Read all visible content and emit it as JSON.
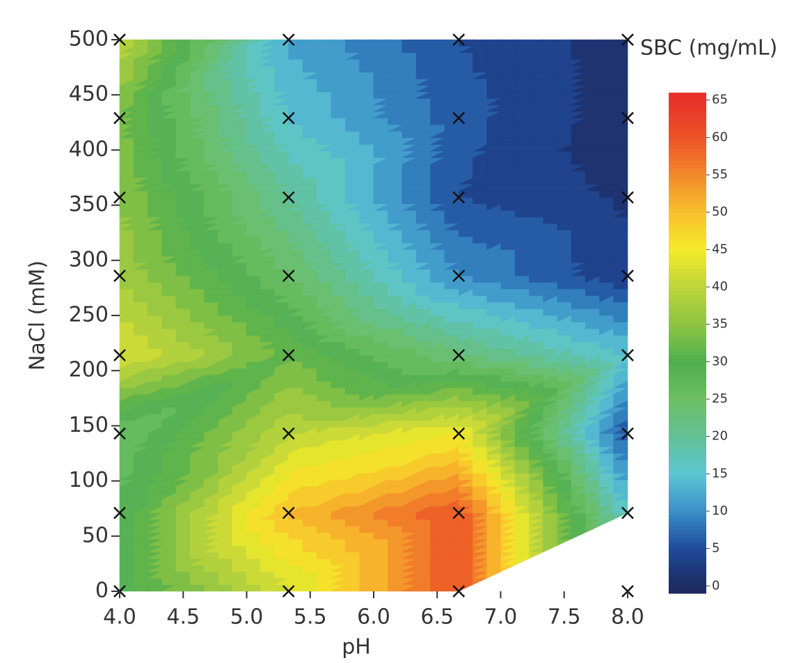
{
  "chart_data": {
    "type": "contour",
    "x_label": "pH",
    "y_label": "NaCl (mM)",
    "x": [
      4.0,
      5.33,
      6.67,
      8.0
    ],
    "y": [
      0,
      71,
      143,
      214,
      286,
      357,
      429,
      500
    ],
    "z": [
      [
        28,
        42,
        60,
        null
      ],
      [
        28,
        50,
        60,
        15
      ],
      [
        25,
        40,
        45,
        5
      ],
      [
        43,
        32,
        23,
        15
      ],
      [
        37,
        25,
        10,
        3
      ],
      [
        35,
        20,
        5,
        2
      ],
      [
        33,
        15,
        6,
        1
      ],
      [
        40,
        12,
        5,
        1
      ]
    ],
    "xlim": [
      4.0,
      8.0
    ],
    "ylim": [
      0,
      500
    ],
    "xticks": [
      {
        "value": 4.0,
        "label": "4.0"
      },
      {
        "value": 4.5,
        "label": "4.5"
      },
      {
        "value": 5.0,
        "label": "5.0"
      },
      {
        "value": 5.5,
        "label": "5.5"
      },
      {
        "value": 6.0,
        "label": "6.0"
      },
      {
        "value": 6.5,
        "label": "6.5"
      },
      {
        "value": 7.0,
        "label": "7.0"
      },
      {
        "value": 7.5,
        "label": "7.5"
      },
      {
        "value": 8.0,
        "label": "8.0"
      }
    ],
    "yticks": [
      0,
      50,
      100,
      150,
      200,
      250,
      300,
      350,
      400,
      450,
      500
    ],
    "marker_color": "#111111",
    "colorbar": {
      "title": "SBC (mg/mL)",
      "lim": [
        -1,
        66
      ],
      "ticks": [
        0,
        5,
        10,
        15,
        20,
        25,
        30,
        35,
        40,
        45,
        50,
        55,
        60,
        65
      ],
      "colors": [
        "#1d2b62",
        "#1f4b9a",
        "#3a8fc8",
        "#5cc6d3",
        "#62c096",
        "#6cbf63",
        "#4fae4f",
        "#8fc443",
        "#bdd53a",
        "#f4ea2a",
        "#f8c12c",
        "#f2892b",
        "#ec5326",
        "#e8322a"
      ]
    }
  }
}
